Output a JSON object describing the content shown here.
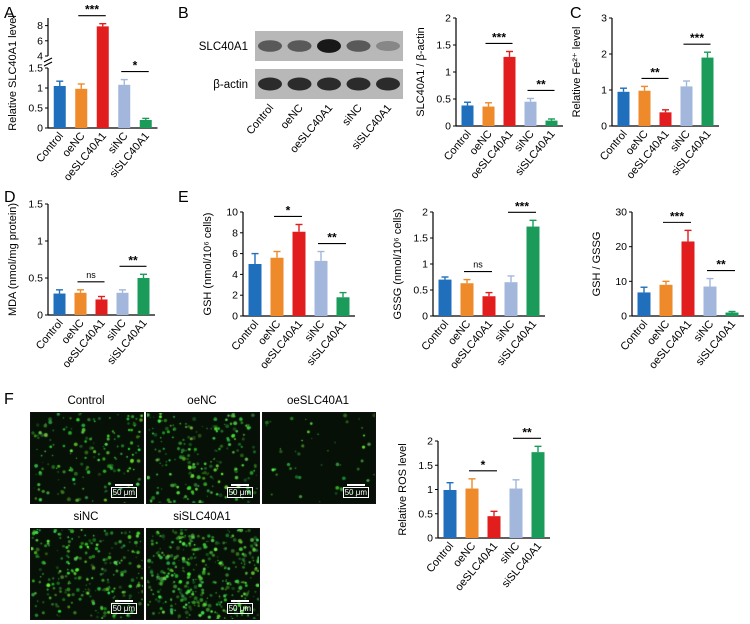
{
  "panel_letters": [
    "A",
    "B",
    "C",
    "D",
    "E",
    "F"
  ],
  "groups": [
    "Control",
    "oeNC",
    "oeSLC40A1",
    "siNC",
    "siSLC40A1"
  ],
  "colors": [
    "#1f6fbd",
    "#ee8a2a",
    "#e21d1d",
    "#a3b7dc",
    "#1a9b5a"
  ],
  "western_blot": {
    "bands": [
      "SLC40A1",
      "β-actin"
    ],
    "lanes": [
      "Control",
      "oeNC",
      "oeSLC40A1",
      "siNC",
      "siSLC40A1"
    ],
    "slc40a1_intensity": [
      0.6,
      0.6,
      0.95,
      0.6,
      0.35
    ],
    "actin_intensity": [
      0.85,
      0.85,
      0.85,
      0.85,
      0.85
    ]
  },
  "microscopy": {
    "titles": [
      "Control",
      "oeNC",
      "oeSLC40A1",
      "siNC",
      "siSLC40A1"
    ],
    "scale_bar": "50 μm",
    "density": [
      0.35,
      0.45,
      0.05,
      0.55,
      0.85
    ]
  },
  "chart_data": [
    {
      "type": "bar",
      "panel": "A",
      "categories": [
        "Control",
        "oeNC",
        "oeSLC40A1",
        "siNC",
        "siSLC40A1"
      ],
      "values": [
        1.05,
        0.98,
        7.9,
        1.08,
        0.2
      ],
      "errors": [
        0.12,
        0.12,
        0.35,
        0.13,
        0.04
      ],
      "ylabel": "Relative SLC40A1 level",
      "ylim": [
        0,
        9
      ],
      "broken_axis": [
        1.5,
        4
      ],
      "yticks_lower": [
        0,
        0.5,
        1.0,
        1.5
      ],
      "yticks_upper": [
        4,
        6,
        8
      ],
      "significance": [
        {
          "pair": [
            1,
            2
          ],
          "label": "***"
        },
        {
          "pair": [
            3,
            4
          ],
          "label": "*"
        }
      ]
    },
    {
      "type": "bar",
      "panel": "B",
      "categories": [
        "Control",
        "oeNC",
        "oeSLC40A1",
        "siNC",
        "siSLC40A1"
      ],
      "values": [
        0.38,
        0.36,
        1.28,
        0.45,
        0.1
      ],
      "errors": [
        0.06,
        0.07,
        0.1,
        0.06,
        0.03
      ],
      "ylabel": "SLC40A1 / β-actin",
      "ylim": [
        0,
        2.0
      ],
      "yticks": [
        0,
        0.5,
        1.0,
        1.5,
        2.0
      ],
      "significance": [
        {
          "pair": [
            1,
            2
          ],
          "label": "***"
        },
        {
          "pair": [
            3,
            4
          ],
          "label": "**"
        }
      ]
    },
    {
      "type": "bar",
      "panel": "C",
      "categories": [
        "Control",
        "oeNC",
        "oeSLC40A1",
        "siNC",
        "siSLC40A1"
      ],
      "values": [
        0.95,
        0.98,
        0.38,
        1.1,
        1.9
      ],
      "errors": [
        0.1,
        0.12,
        0.07,
        0.15,
        0.15
      ],
      "ylabel": "Relative Fe²⁺ level",
      "ylim": [
        0,
        3
      ],
      "yticks": [
        0,
        1,
        2,
        3
      ],
      "significance": [
        {
          "pair": [
            1,
            2
          ],
          "label": "**"
        },
        {
          "pair": [
            3,
            4
          ],
          "label": "***"
        }
      ]
    },
    {
      "type": "bar",
      "panel": "D",
      "categories": [
        "Control",
        "oeNC",
        "oeSLC40A1",
        "siNC",
        "siSLC40A1"
      ],
      "values": [
        0.29,
        0.3,
        0.21,
        0.3,
        0.5
      ],
      "errors": [
        0.05,
        0.04,
        0.04,
        0.04,
        0.05
      ],
      "ylabel": "MDA (nmol/mg protein)",
      "ylim": [
        0,
        1.5
      ],
      "yticks": [
        0,
        0.5,
        1.0,
        1.5
      ],
      "significance": [
        {
          "pair": [
            1,
            2
          ],
          "label": "ns"
        },
        {
          "pair": [
            3,
            4
          ],
          "label": "**"
        }
      ]
    },
    {
      "type": "bar",
      "panel": "E",
      "categories": [
        "Control",
        "oeNC",
        "oeSLC40A1",
        "siNC",
        "siSLC40A1"
      ],
      "values": [
        5.0,
        5.6,
        8.1,
        5.3,
        1.8
      ],
      "errors": [
        1.0,
        0.6,
        0.7,
        0.9,
        0.45
      ],
      "ylabel": "GSH (nmol/10⁶ cells)",
      "ylim": [
        0,
        10
      ],
      "yticks": [
        0,
        2,
        4,
        6,
        8,
        10
      ],
      "significance": [
        {
          "pair": [
            1,
            2
          ],
          "label": "*"
        },
        {
          "pair": [
            3,
            4
          ],
          "label": "**"
        }
      ]
    },
    {
      "type": "bar",
      "panel": "E",
      "categories": [
        "Control",
        "oeNC",
        "oeSLC40A1",
        "siNC",
        "siSLC40A1"
      ],
      "values": [
        0.7,
        0.63,
        0.38,
        0.65,
        1.72
      ],
      "errors": [
        0.05,
        0.07,
        0.07,
        0.12,
        0.12
      ],
      "ylabel": "GSSG (nmol/10⁶ cells)",
      "ylim": [
        0,
        2.0
      ],
      "yticks": [
        0,
        0.5,
        1.0,
        1.5,
        2.0
      ],
      "significance": [
        {
          "pair": [
            1,
            2
          ],
          "label": "ns"
        },
        {
          "pair": [
            3,
            4
          ],
          "label": "***"
        }
      ]
    },
    {
      "type": "bar",
      "panel": "E",
      "categories": [
        "Control",
        "oeNC",
        "oeSLC40A1",
        "siNC",
        "siSLC40A1"
      ],
      "values": [
        6.8,
        9.0,
        21.5,
        8.5,
        1.0
      ],
      "errors": [
        1.5,
        1.0,
        3.2,
        2.3,
        0.3
      ],
      "ylabel": "GSH / GSSG",
      "ylim": [
        0,
        30
      ],
      "yticks": [
        0,
        10,
        20,
        30
      ],
      "significance": [
        {
          "pair": [
            1,
            2
          ],
          "label": "***"
        },
        {
          "pair": [
            3,
            4
          ],
          "label": "**"
        }
      ]
    },
    {
      "type": "bar",
      "panel": "F",
      "categories": [
        "Control",
        "oeNC",
        "oeSLC40A1",
        "siNC",
        "siSLC40A1"
      ],
      "values": [
        0.99,
        1.02,
        0.45,
        1.02,
        1.77
      ],
      "errors": [
        0.15,
        0.2,
        0.1,
        0.18,
        0.12
      ],
      "ylabel": "Relative ROS level",
      "ylim": [
        0,
        2.0
      ],
      "yticks": [
        0,
        0.5,
        1.0,
        1.5,
        2.0
      ],
      "significance": [
        {
          "pair": [
            1,
            2
          ],
          "label": "*"
        },
        {
          "pair": [
            3,
            4
          ],
          "label": "**"
        }
      ]
    }
  ]
}
